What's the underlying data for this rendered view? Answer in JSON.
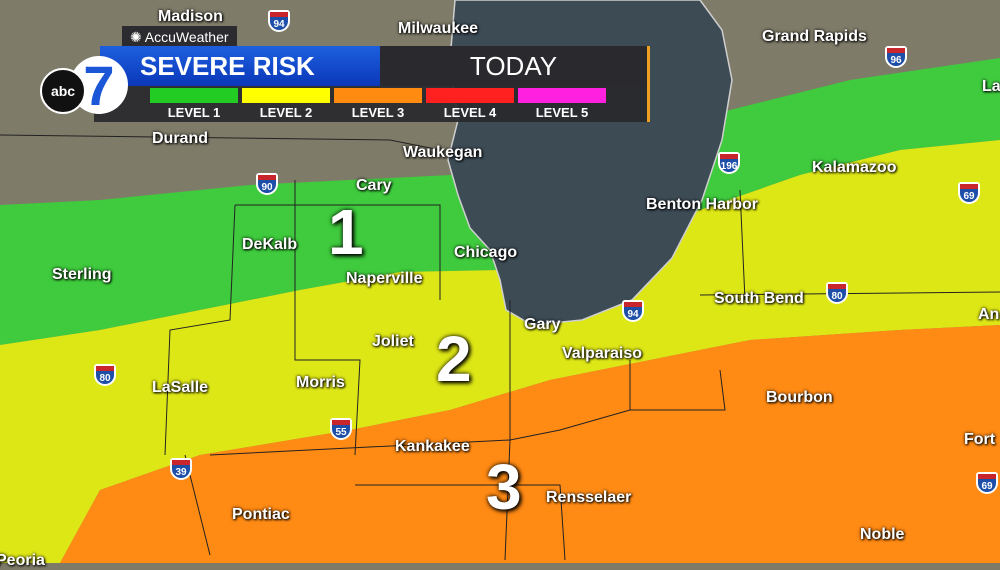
{
  "branding": {
    "station_logo": "abc 7",
    "logo_text_abc": "abc",
    "logo_text_7": "7",
    "partner": "AccuWeather",
    "partner_icon": "sun-icon"
  },
  "header": {
    "title": "SEVERE RISK",
    "period": "TODAY"
  },
  "legend": [
    {
      "label": "LEVEL 1",
      "color": "#22cc22"
    },
    {
      "label": "LEVEL 2",
      "color": "#ffff00"
    },
    {
      "label": "LEVEL 3",
      "color": "#ff8c10"
    },
    {
      "label": "LEVEL 4",
      "color": "#ff2020"
    },
    {
      "label": "LEVEL 5",
      "color": "#ff20e0"
    }
  ],
  "risk_zones": [
    {
      "level": 1,
      "label": "1",
      "color": "#3ad13a"
    },
    {
      "level": 2,
      "label": "2",
      "color": "#e6f00f"
    },
    {
      "level": 3,
      "label": "3",
      "color": "#ff8a14"
    }
  ],
  "cities": [
    "Madison",
    "Milwaukee",
    "Grand Rapids",
    "La",
    "Durand",
    "Waukegan",
    "Kalamazoo",
    "Cary",
    "Benton Harbor",
    "DeKalb",
    "Chicago",
    "Sterling",
    "Naperville",
    "South Bend",
    "An",
    "Gary",
    "Joliet",
    "Valparaiso",
    "LaSalle",
    "Morris",
    "Bourbon",
    "Fort",
    "Kankakee",
    "Rensselaer",
    "Pontiac",
    "Noble",
    "Peoria"
  ],
  "highways": [
    "94",
    "96",
    "90",
    "196",
    "69",
    "80",
    "94",
    "80",
    "55",
    "39",
    "69"
  ]
}
